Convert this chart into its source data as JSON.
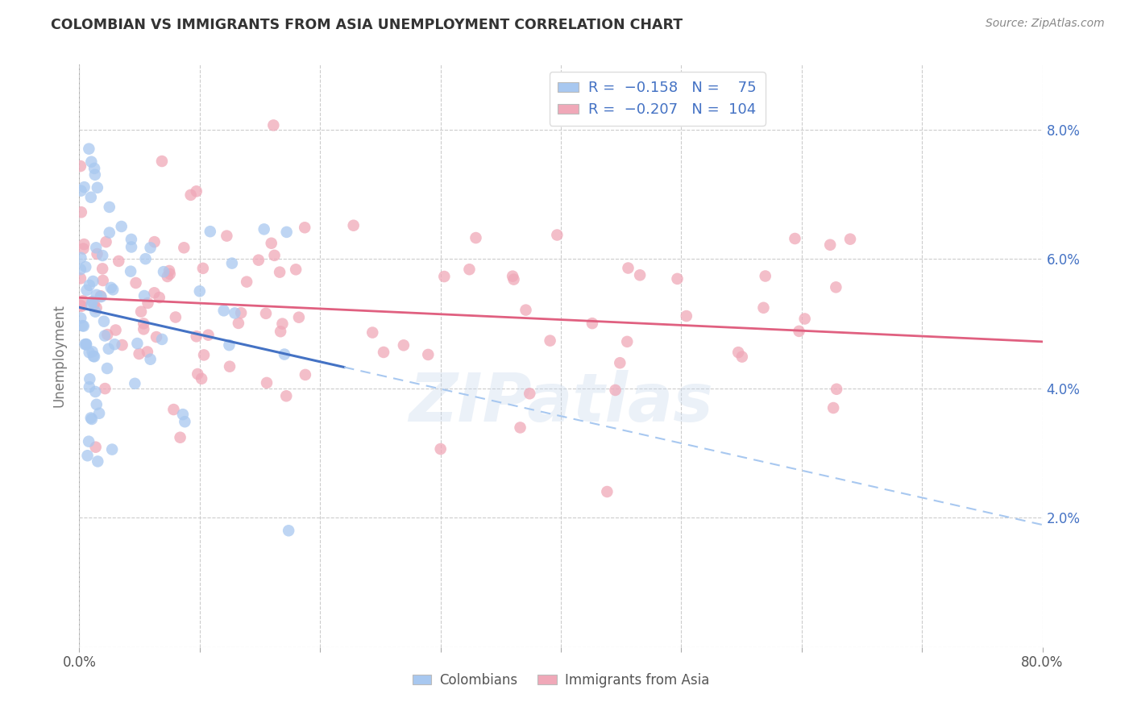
{
  "title": "COLOMBIAN VS IMMIGRANTS FROM ASIA UNEMPLOYMENT CORRELATION CHART",
  "source": "Source: ZipAtlas.com",
  "ylabel": "Unemployment",
  "xlim": [
    0.0,
    0.8
  ],
  "ylim": [
    0.0,
    0.09
  ],
  "color_blue": "#A8C8F0",
  "color_pink": "#F0A8B8",
  "line_blue": "#4472C4",
  "line_pink": "#E06080",
  "line_dashed_color": "#A8C8F0",
  "background_color": "#FFFFFF",
  "grid_color": "#CCCCCC",
  "watermark": "ZIPatlas",
  "r_blue": -0.158,
  "n_blue": 75,
  "r_pink": -0.207,
  "n_pink": 104,
  "ytick_color": "#4472C4",
  "legend_text_color": "#4472C4",
  "title_color": "#333333",
  "source_color": "#888888"
}
